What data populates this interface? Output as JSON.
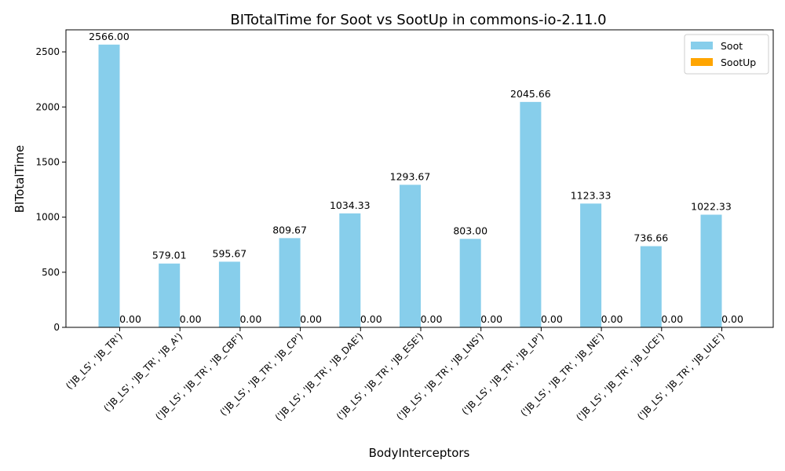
{
  "colors": {
    "soot": "#87ceeb",
    "sootup": "#ffa500"
  },
  "chart_data": {
    "type": "bar",
    "title": "BITotalTime for Soot vs SootUp in commons-io-2.11.0",
    "xlabel": "BodyInterceptors",
    "ylabel": "BITotalTime",
    "ylim": [
      0,
      2700
    ],
    "yticks": [
      0,
      500,
      1000,
      1500,
      2000,
      2500
    ],
    "categories": [
      "('JB_LS', 'JB_TR')",
      "('JB_LS', 'JB_TR', 'JB_A')",
      "('JB_LS', 'JB_TR', 'JB_CBF')",
      "('JB_LS', 'JB_TR', 'JB_CP')",
      "('JB_LS', 'JB_TR', 'JB_DAE')",
      "('JB_LS', 'JB_TR', 'JB_ESE')",
      "('JB_LS', 'JB_TR', 'JB_LNS')",
      "('JB_LS', 'JB_TR', 'JB_LP')",
      "('JB_LS', 'JB_TR', 'JB_NE')",
      "('JB_LS', 'JB_TR', 'JB_UCE')",
      "('JB_LS', 'JB_TR', 'JB_ULE')"
    ],
    "series": [
      {
        "name": "Soot",
        "color": "#87ceeb",
        "values": [
          2566.0,
          579.01,
          595.67,
          809.67,
          1034.33,
          1293.67,
          803.0,
          2045.66,
          1123.33,
          736.66,
          1022.33
        ],
        "labels": [
          "2566.00",
          "579.01",
          "595.67",
          "809.67",
          "1034.33",
          "1293.67",
          "803.00",
          "2045.66",
          "1123.33",
          "736.66",
          "1022.33"
        ]
      },
      {
        "name": "SootUp",
        "color": "#ffa500",
        "values": [
          0,
          0,
          0,
          0,
          0,
          0,
          0,
          0,
          0,
          0,
          0
        ],
        "labels": [
          "0.00",
          "0.00",
          "0.00",
          "0.00",
          "0.00",
          "0.00",
          "0.00",
          "0.00",
          "0.00",
          "0.00",
          "0.00"
        ]
      }
    ],
    "legend": "top-right",
    "grid": false
  }
}
